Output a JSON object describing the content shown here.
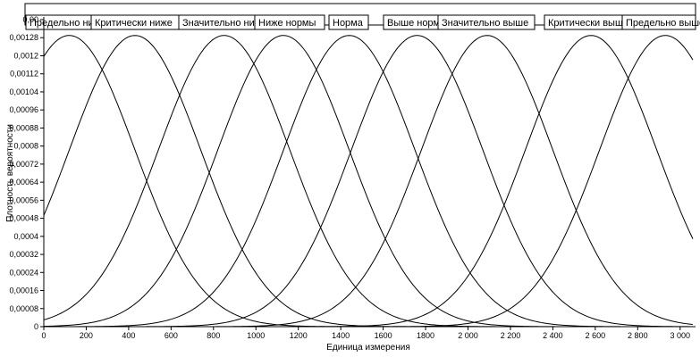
{
  "chart_data": {
    "type": "line",
    "title": "",
    "xlabel": "Единица измерения",
    "ylabel": "Плотность вероятности",
    "xlim": [
      0,
      3060
    ],
    "ylim": [
      0,
      0.00136
    ],
    "x_ticks": [
      0,
      200,
      400,
      600,
      800,
      1000,
      1200,
      1400,
      1600,
      1800,
      2000,
      2200,
      2400,
      2600,
      2800,
      3000
    ],
    "x_tick_labels": [
      "0",
      "200",
      "400",
      "600",
      "800",
      "1000",
      "1200",
      "1400",
      "1600",
      "1800",
      "2 000",
      "2 200",
      "2 400",
      "2 600",
      "2 800",
      "3 000"
    ],
    "y_ticks": [
      0,
      8e-05,
      0.00016,
      0.00024,
      0.00032,
      0.0004,
      0.00048,
      0.00056,
      0.00064,
      0.00072,
      0.0008,
      0.00088,
      0.00096,
      0.00104,
      0.00112,
      0.0012,
      0.00128,
      0.00136
    ],
    "y_tick_labels": [
      "0",
      "0,00008",
      "0,00016",
      "0,00024",
      "0,00032",
      "0,0004",
      "0,00048",
      "0,00056",
      "0,00064",
      "0,00072",
      "0,0008",
      "0,00088",
      "0,00096",
      "0,00104",
      "0,00112",
      "0,0012",
      "0,00128",
      "0,00"
    ],
    "grid": false,
    "legend_position": "top",
    "series": [
      {
        "name": "Предельно ни",
        "mean": 120,
        "std": 310,
        "peak": 0.00129
      },
      {
        "name": "Критически ниже",
        "mean": 430,
        "std": 310,
        "peak": 0.00129
      },
      {
        "name": "Значительно ни",
        "mean": 850,
        "std": 310,
        "peak": 0.00129
      },
      {
        "name": "Ниже нормы",
        "mean": 1130,
        "std": 310,
        "peak": 0.00129
      },
      {
        "name": "Норма",
        "mean": 1440,
        "std": 310,
        "peak": 0.00129
      },
      {
        "name": "Выше норм",
        "mean": 1760,
        "std": 310,
        "peak": 0.00129
      },
      {
        "name": "Значительно выше",
        "mean": 2090,
        "std": 310,
        "peak": 0.00129
      },
      {
        "name": "Критически выш",
        "mean": 2580,
        "std": 310,
        "peak": 0.00129
      },
      {
        "name": "Предельно выше",
        "mean": 2930,
        "std": 310,
        "peak": 0.00129
      }
    ]
  }
}
